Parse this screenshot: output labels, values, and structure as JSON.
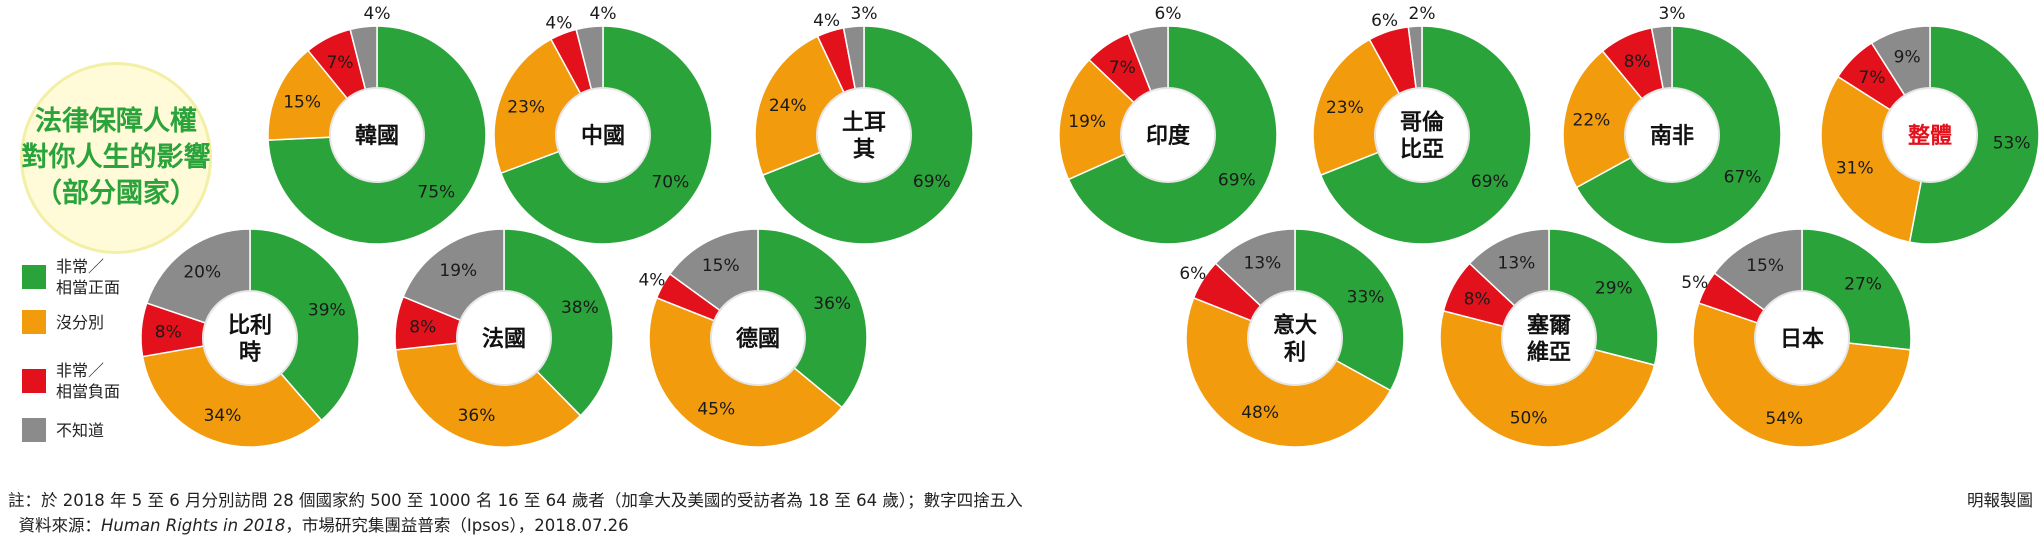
{
  "title": {
    "line1": "法律保障人權",
    "line2": "對你人生的影響",
    "line3": "（部分國家）"
  },
  "legend": [
    {
      "lines": [
        "非常／",
        "相當正面"
      ],
      "color": "#2aa33a"
    },
    {
      "lines": [
        "沒分別"
      ],
      "color": "#f29b0c"
    },
    {
      "lines": [
        "非常／",
        "相當負面"
      ],
      "color": "#e3111b"
    },
    {
      "lines": [
        "不知道"
      ],
      "color": "#8b8b8b"
    }
  ],
  "footnote": {
    "note": "註：於 2018 年 5 至 6 月分別訪問 28 個國家約 500 至 1000 名 16 至 64 歲者（加拿大及美國的受訪者為 18 至 64 歲）；數字四捨五入",
    "source_prefix": "資料來源：",
    "source_title": "Human Rights in 2018",
    "source_suffix": "，市場研究集團益普索（Ipsos），2018.07.26"
  },
  "credit": "明報製圖",
  "chart_data": {
    "type": "pie",
    "variant": "donut",
    "categories": [
      "非常／相當正面",
      "沒分別",
      "非常／相當負面",
      "不知道"
    ],
    "colors": {
      "positive": "#2aa33a",
      "neutral": "#f29b0c",
      "negative": "#e3111b",
      "unknown": "#8b8b8b"
    },
    "value_unit": "%",
    "charts": [
      {
        "country": [
          "韓國"
        ],
        "values": {
          "positive": 75,
          "neutral": 15,
          "negative": 7,
          "unknown": 4
        }
      },
      {
        "country": [
          "中國"
        ],
        "values": {
          "positive": 70,
          "neutral": 23,
          "negative": 4,
          "unknown": 4
        }
      },
      {
        "country": [
          "土耳",
          "其"
        ],
        "values": {
          "positive": 69,
          "neutral": 24,
          "negative": 4,
          "unknown": 3
        }
      },
      {
        "country": [
          "印度"
        ],
        "values": {
          "positive": 69,
          "neutral": 19,
          "negative": 7,
          "unknown": 6
        }
      },
      {
        "country": [
          "哥倫",
          "比亞"
        ],
        "values": {
          "positive": 69,
          "neutral": 23,
          "negative": 6,
          "unknown": 2
        }
      },
      {
        "country": [
          "南非"
        ],
        "values": {
          "positive": 67,
          "neutral": 22,
          "negative": 8,
          "unknown": 3
        }
      },
      {
        "country": [
          "整體"
        ],
        "highlight": true,
        "values": {
          "positive": 53,
          "neutral": 31,
          "negative": 7,
          "unknown": 9
        }
      },
      {
        "country": [
          "比利",
          "時"
        ],
        "values": {
          "positive": 39,
          "neutral": 34,
          "negative": 8,
          "unknown": 20
        }
      },
      {
        "country": [
          "法國"
        ],
        "values": {
          "positive": 38,
          "neutral": 36,
          "negative": 8,
          "unknown": 19
        }
      },
      {
        "country": [
          "德國"
        ],
        "values": {
          "positive": 36,
          "neutral": 45,
          "negative": 4,
          "unknown": 15
        }
      },
      {
        "country": [
          "意大",
          "利"
        ],
        "values": {
          "positive": 33,
          "neutral": 48,
          "negative": 6,
          "unknown": 13
        }
      },
      {
        "country": [
          "塞爾",
          "維亞"
        ],
        "values": {
          "positive": 29,
          "neutral": 50,
          "negative": 8,
          "unknown": 13
        }
      },
      {
        "country": [
          "日本"
        ],
        "values": {
          "positive": 27,
          "neutral": 54,
          "negative": 5,
          "unknown": 15
        }
      }
    ]
  }
}
